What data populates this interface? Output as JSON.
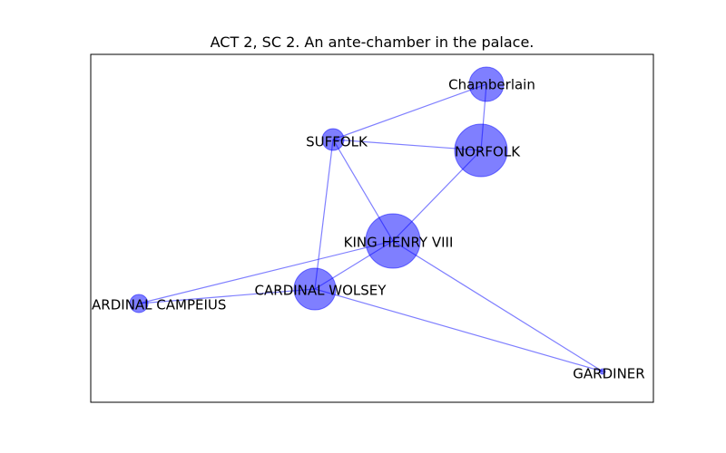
{
  "title": "ACT 2, SC 2. An ante-chamber in the palace.",
  "colors": {
    "node": "#0000ff",
    "edge": "#0000ff",
    "frame": "#000000"
  },
  "nodes": [
    {
      "id": "chamberlain",
      "label": "Chamberlain",
      "weight": 19
    },
    {
      "id": "suffolk",
      "label": "SUFFOLK",
      "weight": 12
    },
    {
      "id": "norfolk",
      "label": "NORFOLK",
      "weight": 29
    },
    {
      "id": "king",
      "label": "KING HENRY VIII",
      "weight": 30
    },
    {
      "id": "wolsey",
      "label": "CARDINAL WOLSEY",
      "weight": 23
    },
    {
      "id": "campeius",
      "label": "CARDINAL CAMPEIUS",
      "weight": 10
    },
    {
      "id": "gardiner",
      "label": "GARDINER",
      "weight": 3
    }
  ],
  "edges": [
    [
      "chamberlain",
      "suffolk"
    ],
    [
      "chamberlain",
      "norfolk"
    ],
    [
      "suffolk",
      "norfolk"
    ],
    [
      "suffolk",
      "king"
    ],
    [
      "suffolk",
      "wolsey"
    ],
    [
      "norfolk",
      "king"
    ],
    [
      "king",
      "wolsey"
    ],
    [
      "king",
      "campeius"
    ],
    [
      "king",
      "gardiner"
    ],
    [
      "wolsey",
      "campeius"
    ],
    [
      "wolsey",
      "gardiner"
    ]
  ]
}
